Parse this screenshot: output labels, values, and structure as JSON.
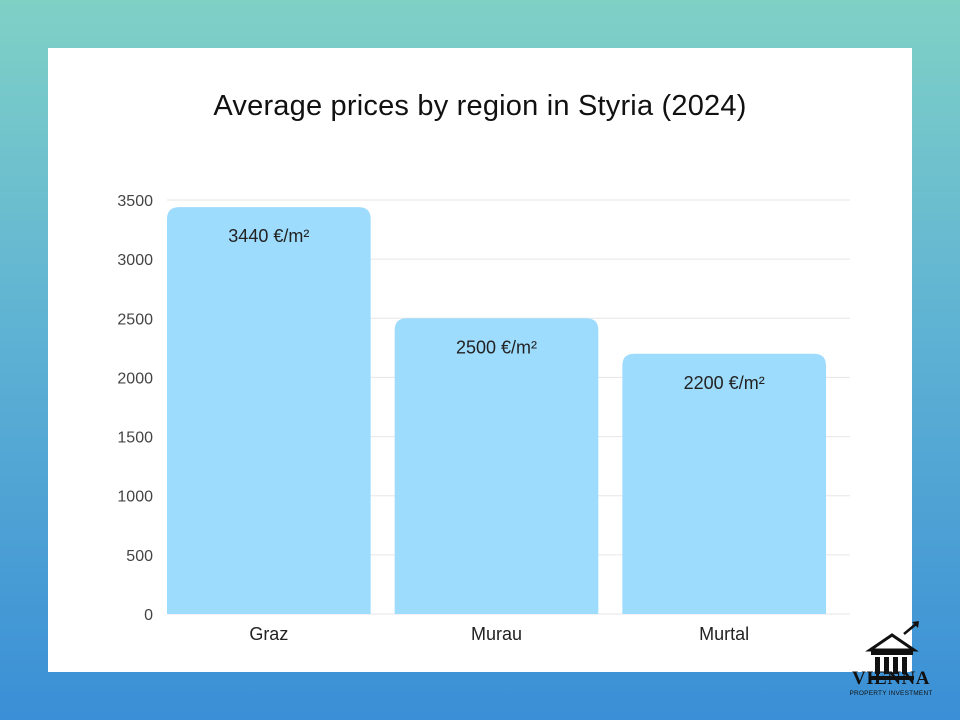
{
  "chart_data": {
    "type": "bar",
    "title": "Average prices by region in Styria (2024)",
    "categories": [
      "Graz",
      "Murau",
      "Murtal"
    ],
    "values": [
      3440,
      2500,
      2200
    ],
    "data_labels": [
      "3440 €/m²",
      "2500 €/m²",
      "2200 €/m²"
    ],
    "yticks": [
      0,
      500,
      1000,
      1500,
      2000,
      2500,
      3000,
      3500
    ],
    "ylim": [
      0,
      3500
    ],
    "xlabel": "",
    "ylabel": "",
    "grid": true,
    "bar_color": "#9edcfd",
    "grid_color": "#e6e6e6"
  },
  "branding": {
    "name": "VIENNA",
    "tagline": "PROPERTY INVESTMENT"
  }
}
